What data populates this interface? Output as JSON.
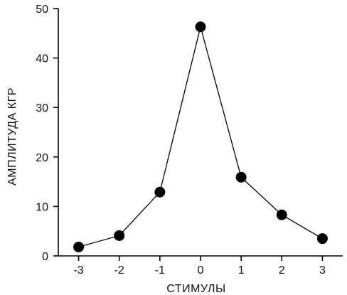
{
  "chart_data": {
    "type": "line",
    "title": "",
    "xlabel": "СТИМУЛЫ",
    "ylabel": "АМПЛИТУДА КГР",
    "x": [
      -3,
      -2,
      -1,
      0,
      1,
      2,
      3
    ],
    "series": [
      {
        "values": [
          1.8,
          4.1,
          12.9,
          46.3,
          15.9,
          8.3,
          3.5
        ]
      }
    ],
    "xlim": [
      -3.5,
      3.5
    ],
    "ylim": [
      0,
      50
    ],
    "x_ticks": [
      "-3",
      "-2",
      "-1",
      "0",
      "1",
      "2",
      "3"
    ],
    "y_ticks": [
      "0",
      "10",
      "20",
      "30",
      "40",
      "50"
    ],
    "y_tick_values": [
      0,
      10,
      20,
      30,
      40,
      50
    ],
    "grid": false,
    "legend": "none",
    "colors": {
      "line": "#000000",
      "marker": "#000000",
      "axis": "#000000"
    }
  }
}
